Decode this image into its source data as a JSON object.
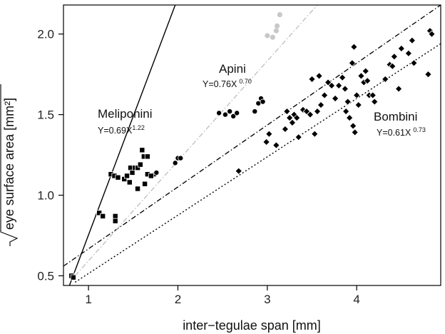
{
  "chart_data": {
    "type": "scatter",
    "xlabel": "inter−tegulae span [mm]",
    "ylabel": "eye surface area [mm²]",
    "ylabel_has_sqrt": true,
    "xlim": [
      0.72,
      4.94
    ],
    "ylim": [
      0.44,
      2.18
    ],
    "x_ticks": [
      1,
      2,
      3,
      4
    ],
    "x_tick_labels": [
      "1",
      "2",
      "3",
      "4"
    ],
    "y_ticks": [
      0.5,
      1.0,
      1.5,
      2.0
    ],
    "y_tick_labels": [
      "0.5",
      "1.0",
      "1.5",
      "2.0"
    ],
    "grid": false,
    "series": [
      {
        "name": "Meliponini",
        "equation_base": "Y=0.69X",
        "equation_exp": "1.22",
        "marker": "square",
        "color": "#000000",
        "line_style": "solid",
        "line": {
          "x": [
            0.78,
            1.97
          ],
          "y": [
            0.43,
            2.18
          ]
        },
        "points": [
          [
            0.81,
            0.5
          ],
          [
            0.83,
            0.49
          ],
          [
            1.12,
            0.89
          ],
          [
            1.16,
            0.87
          ],
          [
            1.3,
            0.87
          ],
          [
            1.3,
            0.84
          ],
          [
            1.25,
            1.13
          ],
          [
            1.29,
            1.12
          ],
          [
            1.33,
            1.11
          ],
          [
            1.4,
            1.1
          ],
          [
            1.43,
            1.12
          ],
          [
            1.47,
            1.17
          ],
          [
            1.49,
            1.14
          ],
          [
            1.52,
            1.17
          ],
          [
            1.55,
            1.17
          ],
          [
            1.46,
            1.08
          ],
          [
            1.55,
            1.04
          ],
          [
            1.58,
            1.19
          ],
          [
            1.6,
            1.28
          ],
          [
            1.62,
            1.24
          ],
          [
            1.66,
            1.24
          ],
          [
            1.63,
            1.07
          ],
          [
            1.66,
            1.13
          ],
          [
            1.7,
            1.12
          ]
        ]
      },
      {
        "name": "Apini",
        "equation_base": "Y=0.76X",
        "equation_exp": "0.70",
        "marker": "circle",
        "color": "#000000",
        "line_style": "dot-dash",
        "line": {
          "x": [
            0.72,
            4.94
          ],
          "y": [
            0.56,
            2.18
          ]
        },
        "points": [
          [
            1.74,
            1.13
          ],
          [
            1.76,
            1.14
          ],
          [
            1.97,
            1.2
          ],
          [
            2.0,
            1.23
          ],
          [
            2.03,
            1.23
          ],
          [
            2.46,
            1.51
          ],
          [
            2.53,
            1.5
          ],
          [
            2.58,
            1.52
          ],
          [
            2.62,
            1.49
          ],
          [
            2.66,
            1.51
          ],
          [
            2.86,
            1.52
          ],
          [
            2.9,
            1.57
          ],
          [
            2.93,
            1.6
          ],
          [
            2.95,
            1.58
          ]
        ]
      },
      {
        "name": "Apini (light)",
        "marker": "circle",
        "color": "#c8c8c8",
        "line_style": "dot-dash-gray",
        "line": {
          "x": [
            0.85,
            3.56
          ],
          "y": [
            0.5,
            2.18
          ]
        },
        "points": [
          [
            3.0,
            1.99
          ],
          [
            3.06,
            1.98
          ],
          [
            3.1,
            2.02
          ],
          [
            3.11,
            2.05
          ],
          [
            3.14,
            2.12
          ]
        ]
      },
      {
        "name": "Bombini",
        "equation_base": "Y=0.61X",
        "equation_exp": "0.73",
        "marker": "diamond",
        "color": "#000000",
        "line_style": "dotted",
        "line": {
          "x": [
            0.85,
            4.94
          ],
          "y": [
            0.46,
            1.94
          ]
        },
        "points": [
          [
            2.68,
            1.15
          ],
          [
            2.99,
            1.33
          ],
          [
            3.02,
            1.38
          ],
          [
            3.1,
            1.31
          ],
          [
            3.2,
            1.41
          ],
          [
            3.22,
            1.52
          ],
          [
            3.25,
            1.48
          ],
          [
            3.28,
            1.45
          ],
          [
            3.3,
            1.5
          ],
          [
            3.33,
            1.48
          ],
          [
            3.35,
            1.36
          ],
          [
            3.4,
            1.53
          ],
          [
            3.44,
            1.52
          ],
          [
            3.48,
            1.5
          ],
          [
            3.5,
            1.72
          ],
          [
            3.53,
            1.38
          ],
          [
            3.56,
            1.52
          ],
          [
            3.58,
            1.74
          ],
          [
            3.6,
            1.56
          ],
          [
            3.64,
            1.62
          ],
          [
            3.68,
            1.7
          ],
          [
            3.72,
            1.68
          ],
          [
            3.76,
            1.6
          ],
          [
            3.8,
            1.68
          ],
          [
            3.84,
            1.73
          ],
          [
            3.87,
            1.66
          ],
          [
            3.88,
            1.52
          ],
          [
            3.9,
            1.58
          ],
          [
            3.92,
            1.48
          ],
          [
            3.95,
            1.82
          ],
          [
            3.96,
            1.43
          ],
          [
            3.97,
            1.92
          ],
          [
            3.98,
            1.39
          ],
          [
            4.0,
            1.62
          ],
          [
            4.02,
            1.56
          ],
          [
            4.05,
            1.74
          ],
          [
            4.08,
            1.7
          ],
          [
            4.1,
            1.77
          ],
          [
            4.12,
            1.71
          ],
          [
            4.14,
            1.62
          ],
          [
            4.18,
            1.62
          ],
          [
            4.2,
            1.58
          ],
          [
            4.32,
            1.72
          ],
          [
            4.37,
            1.81
          ],
          [
            4.4,
            1.8
          ],
          [
            4.42,
            1.86
          ],
          [
            4.47,
            1.66
          ],
          [
            4.5,
            1.91
          ],
          [
            4.58,
            1.88
          ],
          [
            4.62,
            1.96
          ],
          [
            4.64,
            1.82
          ],
          [
            4.8,
            1.75
          ],
          [
            4.82,
            2.02
          ],
          [
            4.84,
            2.0
          ]
        ]
      }
    ]
  }
}
